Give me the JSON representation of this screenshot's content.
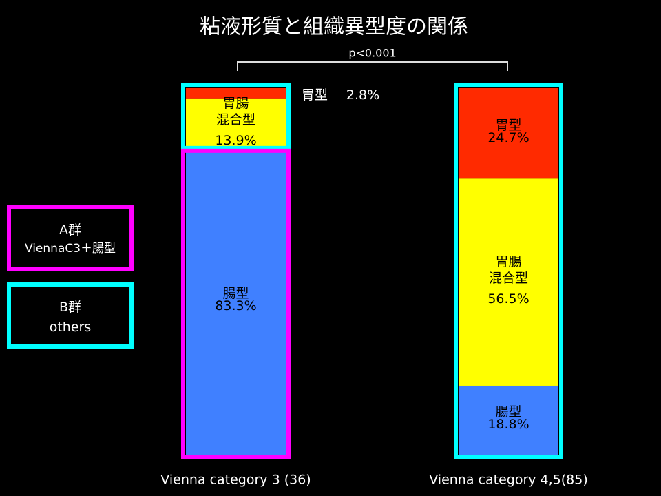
{
  "chart_data": {
    "type": "stacked-bar",
    "title": "粘液形質と組織異型度の関係",
    "annotation": "p<0.001",
    "categories": [
      "Vienna category 3 (36)",
      "Vienna category 4,5(85)"
    ],
    "series": [
      {
        "name": "胃型",
        "color": "#ff2a00",
        "values": [
          2.8,
          24.7
        ],
        "value_labels": [
          "2.8%",
          "24.7%"
        ]
      },
      {
        "name": "胃腸\n混合型",
        "color": "#ffff00",
        "values": [
          13.9,
          56.5
        ],
        "value_labels": [
          "13.9%",
          "56.5%"
        ]
      },
      {
        "name": "腸型",
        "color": "#4080ff",
        "values": [
          83.3,
          18.8
        ],
        "value_labels": [
          "83.3%",
          "18.8%"
        ]
      }
    ],
    "groups": [
      {
        "label": "A群",
        "description": "ViennaC3＋腸型",
        "color": "#ff00ff"
      },
      {
        "label": "B群",
        "description": "others",
        "color": "#00ffff"
      }
    ]
  }
}
